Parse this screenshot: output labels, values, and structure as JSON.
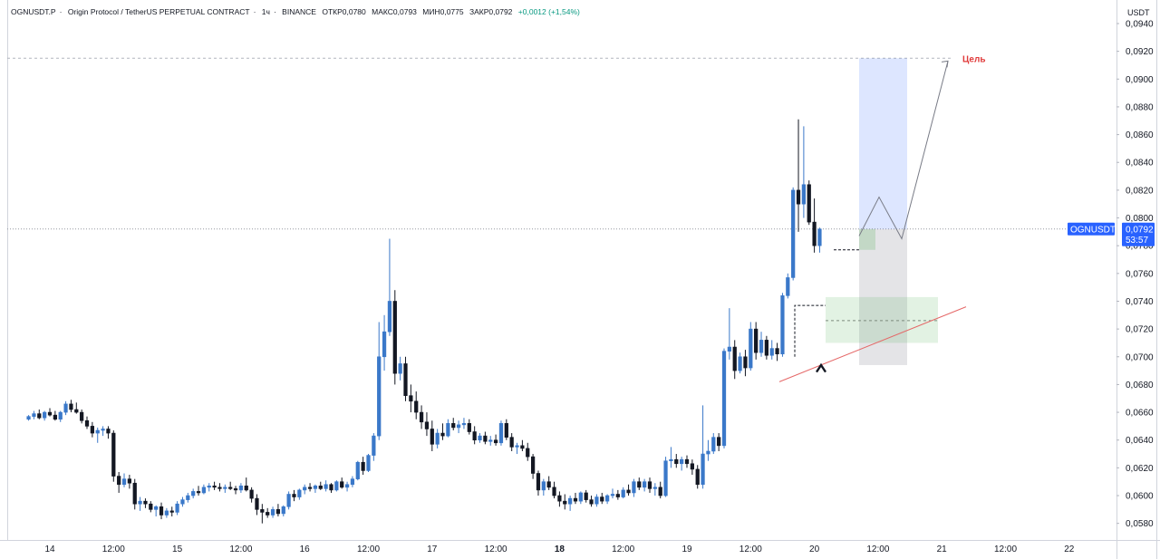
{
  "header": {
    "symbol": "OGNUSDT.P",
    "name": "Origin Protocol / TetherUS PERPETUAL CONTRACT",
    "interval": "1ч",
    "exchange": "BINANCE",
    "open": "ОТКР0,0780",
    "high": "МАКС0,0793",
    "low": "МИН0,0775",
    "close": "ЗАКР0,0792",
    "change": "+0,0012 (+1,54%)"
  },
  "price_scale": {
    "currency": "USDT"
  },
  "price_badge": {
    "symbol": "OGNUSDT.P",
    "price": "0,0792",
    "countdown": "53:57"
  },
  "annotations": {
    "target_label": "Цель"
  },
  "colors": {
    "up": "#3a78c9",
    "down": "#131722",
    "target": "#e03a3a",
    "badge": "#2962ff",
    "trendline": "#e56767"
  },
  "chart_data": {
    "type": "candlestick",
    "title": "",
    "ylim": [
      0.057,
      0.0955
    ],
    "yticks": [
      "0,0580",
      "0,0600",
      "0,0620",
      "0,0640",
      "0,0660",
      "0,0680",
      "0,0700",
      "0,0720",
      "0,0740",
      "0,0760",
      "0,0780",
      "0,0800",
      "0,0820",
      "0,0840",
      "0,0860",
      "0,0880",
      "0,0900",
      "0,0920",
      "0,0940"
    ],
    "ytick_values": [
      0.058,
      0.06,
      0.062,
      0.064,
      0.066,
      0.068,
      0.07,
      0.072,
      0.074,
      0.076,
      0.078,
      0.08,
      0.082,
      0.084,
      0.086,
      0.088,
      0.09,
      0.092,
      0.094
    ],
    "xticks": [
      "14",
      "12:00",
      "15",
      "12:00",
      "16",
      "12:00",
      "17",
      "12:00",
      "18",
      "12:00",
      "19",
      "12:00",
      "20",
      "12:00",
      "21",
      "12:00",
      "22"
    ],
    "xtick_hours": [
      0,
      12,
      24,
      36,
      48,
      60,
      72,
      84,
      96,
      108,
      120,
      132,
      144,
      156,
      168,
      180,
      192
    ],
    "bold_xticks": [
      "18"
    ],
    "start_hour": -4,
    "last_price": 0.0792,
    "target_price": 0.0915,
    "candles": [
      [
        0.0655,
        0.0658,
        0.0654,
        0.0657
      ],
      [
        0.0657,
        0.0661,
        0.0655,
        0.0659
      ],
      [
        0.0659,
        0.0662,
        0.0655,
        0.0656
      ],
      [
        0.0656,
        0.0661,
        0.0654,
        0.066
      ],
      [
        0.066,
        0.0663,
        0.0657,
        0.0658
      ],
      [
        0.0658,
        0.0661,
        0.0654,
        0.0655
      ],
      [
        0.0655,
        0.0661,
        0.0653,
        0.066
      ],
      [
        0.066,
        0.0668,
        0.0658,
        0.0666
      ],
      [
        0.0666,
        0.0669,
        0.066,
        0.0662
      ],
      [
        0.0662,
        0.0667,
        0.0659,
        0.066
      ],
      [
        0.066,
        0.0662,
        0.0652,
        0.0654
      ],
      [
        0.0654,
        0.0657,
        0.0648,
        0.065
      ],
      [
        0.065,
        0.0653,
        0.0642,
        0.0645
      ],
      [
        0.0645,
        0.0649,
        0.0638,
        0.0647
      ],
      [
        0.0647,
        0.065,
        0.0643,
        0.0648
      ],
      [
        0.0648,
        0.065,
        0.0641,
        0.0645
      ],
      [
        0.0645,
        0.0647,
        0.061,
        0.0614
      ],
      [
        0.0614,
        0.0617,
        0.0602,
        0.0608
      ],
      [
        0.0608,
        0.0616,
        0.0606,
        0.0612
      ],
      [
        0.0612,
        0.0615,
        0.0605,
        0.0609
      ],
      [
        0.0609,
        0.0612,
        0.059,
        0.0594
      ],
      [
        0.0594,
        0.0599,
        0.0589,
        0.0596
      ],
      [
        0.0596,
        0.0598,
        0.0591,
        0.0594
      ],
      [
        0.0594,
        0.0596,
        0.0588,
        0.059
      ],
      [
        0.059,
        0.0593,
        0.0585,
        0.0592
      ],
      [
        0.0592,
        0.0595,
        0.0583,
        0.0586
      ],
      [
        0.0586,
        0.0591,
        0.0584,
        0.0589
      ],
      [
        0.0589,
        0.0592,
        0.0585,
        0.0588
      ],
      [
        0.0588,
        0.0596,
        0.0586,
        0.0594
      ],
      [
        0.0594,
        0.0599,
        0.0592,
        0.0597
      ],
      [
        0.0597,
        0.0602,
        0.0595,
        0.06
      ],
      [
        0.06,
        0.0605,
        0.0598,
        0.0603
      ],
      [
        0.0603,
        0.0607,
        0.06,
        0.0602
      ],
      [
        0.0602,
        0.0608,
        0.0601,
        0.0606
      ],
      [
        0.0606,
        0.0609,
        0.0603,
        0.0607
      ],
      [
        0.0607,
        0.061,
        0.0604,
        0.0606
      ],
      [
        0.0606,
        0.0609,
        0.0603,
        0.0605
      ],
      [
        0.0605,
        0.0608,
        0.0602,
        0.0606
      ],
      [
        0.0606,
        0.061,
        0.0604,
        0.0605
      ],
      [
        0.0605,
        0.0607,
        0.0601,
        0.0604
      ],
      [
        0.0604,
        0.0609,
        0.0602,
        0.0607
      ],
      [
        0.0607,
        0.0613,
        0.0603,
        0.0604
      ],
      [
        0.0604,
        0.0606,
        0.0595,
        0.0598
      ],
      [
        0.0598,
        0.0601,
        0.0586,
        0.059
      ],
      [
        0.059,
        0.0594,
        0.058,
        0.0588
      ],
      [
        0.0588,
        0.0591,
        0.0584,
        0.0586
      ],
      [
        0.0586,
        0.0592,
        0.0584,
        0.059
      ],
      [
        0.059,
        0.0594,
        0.0585,
        0.0587
      ],
      [
        0.0587,
        0.0593,
        0.0585,
        0.0592
      ],
      [
        0.0592,
        0.0603,
        0.059,
        0.0601
      ],
      [
        0.0601,
        0.0604,
        0.0596,
        0.0599
      ],
      [
        0.0599,
        0.0605,
        0.0597,
        0.0604
      ],
      [
        0.0604,
        0.0608,
        0.0601,
        0.0606
      ],
      [
        0.0606,
        0.0609,
        0.0603,
        0.0605
      ],
      [
        0.0605,
        0.0608,
        0.0602,
        0.0607
      ],
      [
        0.0607,
        0.061,
        0.0604,
        0.0605
      ],
      [
        0.0605,
        0.0611,
        0.0603,
        0.0608
      ],
      [
        0.0608,
        0.0609,
        0.0602,
        0.0604
      ],
      [
        0.0604,
        0.0611,
        0.0603,
        0.061
      ],
      [
        0.061,
        0.0613,
        0.0605,
        0.0606
      ],
      [
        0.0606,
        0.061,
        0.0603,
        0.0608
      ],
      [
        0.0608,
        0.0614,
        0.0606,
        0.0612
      ],
      [
        0.0612,
        0.0625,
        0.0611,
        0.0624
      ],
      [
        0.0624,
        0.0628,
        0.0615,
        0.0618
      ],
      [
        0.0618,
        0.063,
        0.0617,
        0.0629
      ],
      [
        0.0629,
        0.0645,
        0.0625,
        0.0643
      ],
      [
        0.0643,
        0.0725,
        0.064,
        0.07
      ],
      [
        0.07,
        0.073,
        0.069,
        0.0718
      ],
      [
        0.0718,
        0.0785,
        0.0715,
        0.074
      ],
      [
        0.074,
        0.0748,
        0.068,
        0.0688
      ],
      [
        0.0688,
        0.07,
        0.0683,
        0.0695
      ],
      [
        0.0695,
        0.07,
        0.0668,
        0.0672
      ],
      [
        0.0672,
        0.068,
        0.066,
        0.0668
      ],
      [
        0.0668,
        0.0675,
        0.0655,
        0.066
      ],
      [
        0.066,
        0.0665,
        0.0648,
        0.0653
      ],
      [
        0.0653,
        0.066,
        0.0643,
        0.0648
      ],
      [
        0.0648,
        0.0654,
        0.0632,
        0.0637
      ],
      [
        0.0637,
        0.0648,
        0.0634,
        0.0645
      ],
      [
        0.0645,
        0.0652,
        0.064,
        0.0643
      ],
      [
        0.0643,
        0.0655,
        0.0642,
        0.0652
      ],
      [
        0.0652,
        0.0656,
        0.0647,
        0.0649
      ],
      [
        0.0649,
        0.0654,
        0.0645,
        0.0651
      ],
      [
        0.0651,
        0.0656,
        0.0648,
        0.0652
      ],
      [
        0.0652,
        0.0655,
        0.0644,
        0.0646
      ],
      [
        0.0646,
        0.065,
        0.0637,
        0.064
      ],
      [
        0.064,
        0.0645,
        0.0638,
        0.0643
      ],
      [
        0.0643,
        0.0646,
        0.0637,
        0.0639
      ],
      [
        0.0639,
        0.0643,
        0.0636,
        0.064
      ],
      [
        0.064,
        0.0644,
        0.0636,
        0.0638
      ],
      [
        0.0638,
        0.0654,
        0.0636,
        0.0652
      ],
      [
        0.0652,
        0.0655,
        0.064,
        0.0642
      ],
      [
        0.0642,
        0.0645,
        0.0632,
        0.0635
      ],
      [
        0.0635,
        0.0638,
        0.063,
        0.0636
      ],
      [
        0.0636,
        0.064,
        0.0632,
        0.0634
      ],
      [
        0.0634,
        0.0638,
        0.0625,
        0.0628
      ],
      [
        0.0628,
        0.063,
        0.0612,
        0.0616
      ],
      [
        0.0616,
        0.0618,
        0.06,
        0.0604
      ],
      [
        0.0604,
        0.0612,
        0.06,
        0.061
      ],
      [
        0.061,
        0.0614,
        0.0604,
        0.0606
      ],
      [
        0.0606,
        0.061,
        0.0598,
        0.06
      ],
      [
        0.06,
        0.0603,
        0.0592,
        0.0596
      ],
      [
        0.0596,
        0.0601,
        0.059,
        0.0594
      ],
      [
        0.0594,
        0.06,
        0.0589,
        0.0598
      ],
      [
        0.0598,
        0.0602,
        0.0594,
        0.0596
      ],
      [
        0.0596,
        0.0603,
        0.0594,
        0.0602
      ],
      [
        0.0602,
        0.0604,
        0.0595,
        0.0597
      ],
      [
        0.0597,
        0.06,
        0.0592,
        0.0594
      ],
      [
        0.0594,
        0.0601,
        0.0592,
        0.0599
      ],
      [
        0.0599,
        0.0602,
        0.0594,
        0.0596
      ],
      [
        0.0596,
        0.0601,
        0.0594,
        0.06
      ],
      [
        0.06,
        0.0605,
        0.0598,
        0.0601
      ],
      [
        0.0601,
        0.0604,
        0.0597,
        0.0599
      ],
      [
        0.0599,
        0.0606,
        0.0598,
        0.0604
      ],
      [
        0.0604,
        0.0608,
        0.06,
        0.0602
      ],
      [
        0.0602,
        0.0612,
        0.0599,
        0.061
      ],
      [
        0.061,
        0.0613,
        0.0604,
        0.0606
      ],
      [
        0.0606,
        0.0612,
        0.0603,
        0.061
      ],
      [
        0.061,
        0.0613,
        0.0602,
        0.0605
      ],
      [
        0.0605,
        0.0609,
        0.06,
        0.0606
      ],
      [
        0.0606,
        0.061,
        0.0598,
        0.06
      ],
      [
        0.06,
        0.0628,
        0.0599,
        0.0625
      ],
      [
        0.0625,
        0.0635,
        0.062,
        0.0626
      ],
      [
        0.0626,
        0.063,
        0.062,
        0.0623
      ],
      [
        0.0623,
        0.0628,
        0.0618,
        0.0626
      ],
      [
        0.0626,
        0.0629,
        0.062,
        0.0623
      ],
      [
        0.0623,
        0.0626,
        0.0615,
        0.0619
      ],
      [
        0.0619,
        0.0622,
        0.0605,
        0.0608
      ],
      [
        0.0608,
        0.0665,
        0.0605,
        0.063
      ],
      [
        0.063,
        0.064,
        0.0625,
        0.0632
      ],
      [
        0.0632,
        0.0645,
        0.063,
        0.0642
      ],
      [
        0.0642,
        0.0645,
        0.0632,
        0.0636
      ],
      [
        0.0636,
        0.0706,
        0.0634,
        0.0704
      ],
      [
        0.0704,
        0.0735,
        0.0698,
        0.0707
      ],
      [
        0.0707,
        0.0712,
        0.0684,
        0.069
      ],
      [
        0.069,
        0.0703,
        0.0688,
        0.07
      ],
      [
        0.07,
        0.0705,
        0.0686,
        0.0692
      ],
      [
        0.0692,
        0.0725,
        0.069,
        0.072
      ],
      [
        0.072,
        0.0725,
        0.0698,
        0.0703
      ],
      [
        0.0703,
        0.0718,
        0.07,
        0.0712
      ],
      [
        0.0712,
        0.0715,
        0.0698,
        0.0701
      ],
      [
        0.0701,
        0.0712,
        0.0698,
        0.0706
      ],
      [
        0.0706,
        0.071,
        0.0697,
        0.0702
      ],
      [
        0.0702,
        0.0746,
        0.07,
        0.0744
      ],
      [
        0.0744,
        0.076,
        0.0742,
        0.0757
      ],
      [
        0.0757,
        0.0822,
        0.0755,
        0.082
      ],
      [
        0.082,
        0.0871,
        0.079,
        0.081
      ],
      [
        0.081,
        0.0866,
        0.08,
        0.0824
      ],
      [
        0.0824,
        0.0827,
        0.0795,
        0.0797
      ],
      [
        0.0797,
        0.0814,
        0.0775,
        0.078
      ],
      [
        0.078,
        0.0793,
        0.0775,
        0.0792
      ]
    ]
  }
}
